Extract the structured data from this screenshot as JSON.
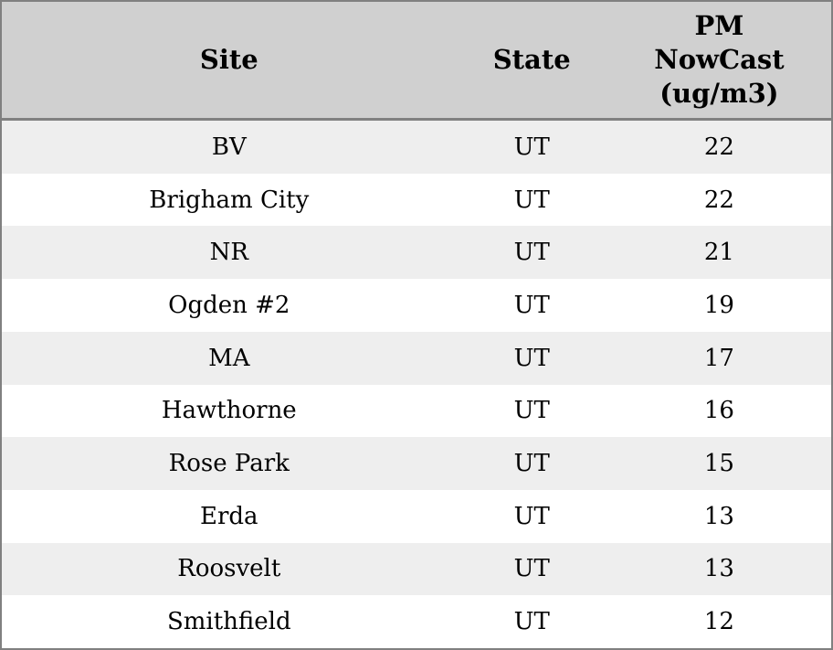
{
  "colors": {
    "border": "#808080",
    "header_bg": "#d0d0d0",
    "row_bg": "#ffffff",
    "row_alt_bg": "#eeeeee",
    "text": "#000000"
  },
  "chart_data": {
    "type": "table",
    "title": "",
    "columns": [
      "Site",
      "State",
      "PM NowCast (ug/m3)"
    ],
    "rows": [
      {
        "site": "BV",
        "state": "UT",
        "pm_nowcast": "22"
      },
      {
        "site": "Brigham City",
        "state": "UT",
        "pm_nowcast": "22"
      },
      {
        "site": "NR",
        "state": "UT",
        "pm_nowcast": "21"
      },
      {
        "site": "Ogden #2",
        "state": "UT",
        "pm_nowcast": "19"
      },
      {
        "site": "MA",
        "state": "UT",
        "pm_nowcast": "17"
      },
      {
        "site": "Hawthorne",
        "state": "UT",
        "pm_nowcast": "16"
      },
      {
        "site": "Rose Park",
        "state": "UT",
        "pm_nowcast": "15"
      },
      {
        "site": "Erda",
        "state": "UT",
        "pm_nowcast": "13"
      },
      {
        "site": "Roosvelt",
        "state": "UT",
        "pm_nowcast": "13"
      },
      {
        "site": "Smithfield",
        "state": "UT",
        "pm_nowcast": "12"
      }
    ]
  }
}
